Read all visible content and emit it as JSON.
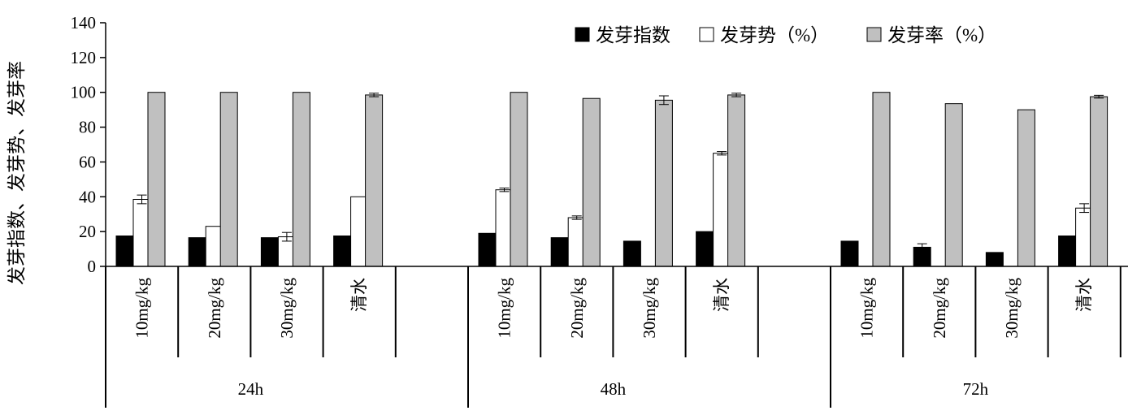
{
  "chart_data": {
    "type": "bar",
    "ylabel": "发芽指数、发芽势、发芽率",
    "ylim": [
      0,
      140
    ],
    "yticks": [
      0,
      20,
      40,
      60,
      80,
      100,
      120,
      140
    ],
    "grid": false,
    "legend_position": "top-right",
    "groups": [
      {
        "label": "24h",
        "categories": [
          "10mg/kg",
          "20mg/kg",
          "30mg/kg",
          "清水"
        ]
      },
      {
        "label": "48h",
        "categories": [
          "10mg/kg",
          "20mg/kg",
          "30mg/kg",
          "清水"
        ]
      },
      {
        "label": "72h",
        "categories": [
          "10mg/kg",
          "20mg/kg",
          "30mg/kg",
          "清水"
        ]
      }
    ],
    "series": [
      {
        "name": "发芽指数",
        "color": "#000000",
        "values": [
          17.5,
          16.5,
          16.5,
          17.5,
          19,
          16.5,
          14.5,
          20,
          14.5,
          11,
          8,
          17.5
        ],
        "errors": [
          0,
          0,
          0,
          0,
          0,
          0,
          0,
          0,
          0,
          2,
          0,
          0
        ]
      },
      {
        "name": "发芽势（%）",
        "color": "#ffffff",
        "values": [
          38.5,
          23,
          17,
          40,
          44,
          28,
          0,
          65,
          0,
          0,
          0,
          33.5
        ],
        "errors": [
          2.5,
          0,
          2.5,
          0,
          1,
          1,
          0,
          1,
          0,
          0,
          0,
          2.5
        ]
      },
      {
        "name": "发芽率（%）",
        "color": "#c0c0c0",
        "values": [
          100,
          100,
          100,
          98.5,
          100,
          96.5,
          95.5,
          98.5,
          100,
          93.5,
          90,
          97.5
        ],
        "errors": [
          0,
          0,
          0,
          1,
          0,
          0,
          2.5,
          1,
          0,
          0,
          0,
          0.8
        ]
      }
    ]
  }
}
